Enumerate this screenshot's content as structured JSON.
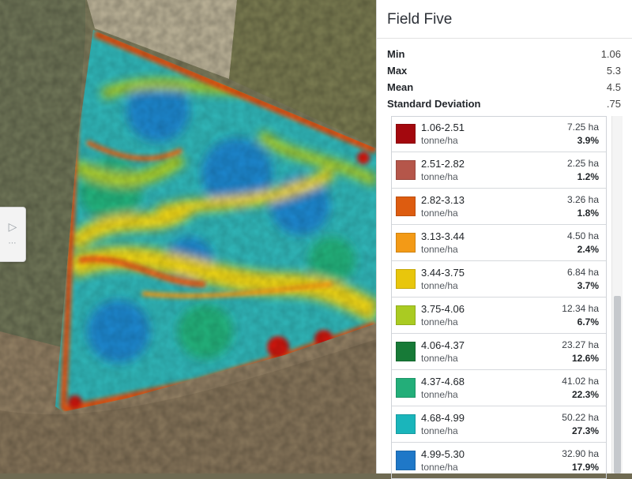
{
  "panel": {
    "title": "Field Five",
    "stats": [
      {
        "label": "Min",
        "value": "1.06"
      },
      {
        "label": "Max",
        "value": "5.3"
      },
      {
        "label": "Mean",
        "value": "4.5"
      },
      {
        "label": "Standard Deviation",
        "value": ".75"
      }
    ]
  },
  "legend": {
    "items": [
      {
        "range": "1.06-2.51",
        "unit": "tonne/ha",
        "area": "7.25 ha",
        "percent": "3.9%",
        "color": "#a3080e"
      },
      {
        "range": "2.51-2.82",
        "unit": "tonne/ha",
        "area": "2.25 ha",
        "percent": "1.2%",
        "color": "#b5564a"
      },
      {
        "range": "2.82-3.13",
        "unit": "tonne/ha",
        "area": "3.26 ha",
        "percent": "1.8%",
        "color": "#dd5c10"
      },
      {
        "range": "3.13-3.44",
        "unit": "tonne/ha",
        "area": "4.50 ha",
        "percent": "2.4%",
        "color": "#f39a16"
      },
      {
        "range": "3.44-3.75",
        "unit": "tonne/ha",
        "area": "6.84 ha",
        "percent": "3.7%",
        "color": "#e8c60c"
      },
      {
        "range": "3.75-4.06",
        "unit": "tonne/ha",
        "area": "12.34 ha",
        "percent": "6.7%",
        "color": "#aacb22"
      },
      {
        "range": "4.06-4.37",
        "unit": "tonne/ha",
        "area": "23.27 ha",
        "percent": "12.6%",
        "color": "#177a37"
      },
      {
        "range": "4.37-4.68",
        "unit": "tonne/ha",
        "area": "41.02 ha",
        "percent": "22.3%",
        "color": "#23ae79"
      },
      {
        "range": "4.68-4.99",
        "unit": "tonne/ha",
        "area": "50.22 ha",
        "percent": "27.3%",
        "color": "#1ab5bb"
      },
      {
        "range": "4.99-5.30",
        "unit": "tonne/ha",
        "area": "32.90 ha",
        "percent": "17.9%",
        "color": "#1f78c8"
      }
    ]
  },
  "map": {
    "side_tab_icon": "panel-toggle-icon",
    "colors": {
      "field_base": "#2fb2b4",
      "terrain": "#7a7656",
      "paddock_light": "#b8b098"
    }
  }
}
